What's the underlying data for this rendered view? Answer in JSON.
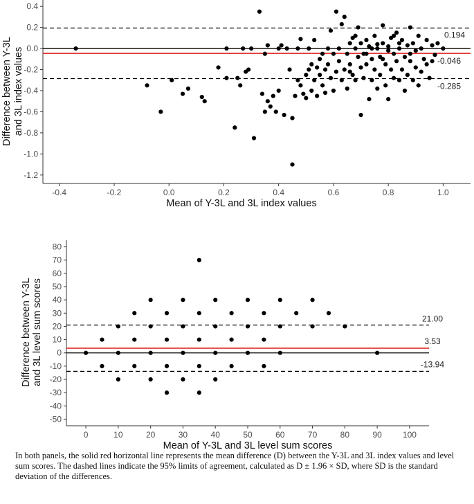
{
  "chart_data": [
    {
      "type": "scatter",
      "title": "",
      "xlabel": "Mean of Y-3L and 3L index values",
      "ylabel_lines": [
        "Difference between Y-3L",
        "and 3L index values"
      ],
      "xlim": [
        -0.46,
        1.1
      ],
      "ylim": [
        -1.28,
        0.46
      ],
      "xticks": [
        -0.4,
        -0.2,
        0.0,
        0.2,
        0.4,
        0.6,
        0.8,
        1.0
      ],
      "yticks": [
        0.4,
        0.2,
        0.0,
        -0.2,
        -0.4,
        -0.6,
        -0.8,
        -1.0,
        -1.2
      ],
      "xtick_labels": [
        "-0.4",
        "-0.2",
        "0.0",
        "0.2",
        "0.4",
        "0.6",
        "0.8",
        "1.0"
      ],
      "ytick_labels": [
        "0.4",
        "0.2",
        "0.0",
        "-0.2",
        "-0.4",
        "-0.6",
        "-0.8",
        "-1.0",
        "-1.2"
      ],
      "zero_line": 0,
      "mean_diff": -0.046,
      "upper_loa": 0.194,
      "lower_loa": -0.285,
      "mean_label": "-0.046",
      "upper_label": "0.194",
      "lower_label": "-0.285",
      "colors": {
        "mean": "#e0201b",
        "limits": "#000000",
        "zero": "#000000",
        "points": "#000000"
      },
      "points": [
        [
          -0.34,
          0.0
        ],
        [
          -0.08,
          -0.35
        ],
        [
          -0.03,
          -0.6
        ],
        [
          0.01,
          -0.3
        ],
        [
          0.05,
          -0.43
        ],
        [
          0.07,
          -0.38
        ],
        [
          0.12,
          -0.46
        ],
        [
          0.13,
          -0.5
        ],
        [
          0.18,
          -0.18
        ],
        [
          0.21,
          -0.28
        ],
        [
          0.21,
          0.0
        ],
        [
          0.24,
          -0.75
        ],
        [
          0.25,
          -0.28
        ],
        [
          0.26,
          -0.35
        ],
        [
          0.27,
          0.0
        ],
        [
          0.28,
          -0.22
        ],
        [
          0.29,
          -0.2
        ],
        [
          0.3,
          0.0
        ],
        [
          0.31,
          -0.85
        ],
        [
          0.33,
          0.35
        ],
        [
          0.34,
          -0.43
        ],
        [
          0.35,
          -0.6
        ],
        [
          0.35,
          -0.05
        ],
        [
          0.36,
          0.03
        ],
        [
          0.36,
          -0.5
        ],
        [
          0.37,
          -0.55
        ],
        [
          0.38,
          -0.45
        ],
        [
          0.39,
          -0.6
        ],
        [
          0.4,
          0.0
        ],
        [
          0.4,
          -0.4
        ],
        [
          0.41,
          0.03
        ],
        [
          0.42,
          -0.63
        ],
        [
          0.43,
          0.0
        ],
        [
          0.44,
          -0.2
        ],
        [
          0.45,
          -0.66
        ],
        [
          0.45,
          -1.1
        ],
        [
          0.46,
          -0.45
        ],
        [
          0.47,
          0.0
        ],
        [
          0.47,
          -0.3
        ],
        [
          0.48,
          0.09
        ],
        [
          0.48,
          -0.35
        ],
        [
          0.49,
          -0.43
        ],
        [
          0.5,
          -0.25
        ],
        [
          0.5,
          -0.47
        ],
        [
          0.51,
          -0.2
        ],
        [
          0.51,
          0.0
        ],
        [
          0.52,
          -0.15
        ],
        [
          0.52,
          -0.4
        ],
        [
          0.53,
          0.08
        ],
        [
          0.53,
          -0.3
        ],
        [
          0.54,
          -0.18
        ],
        [
          0.54,
          -0.45
        ],
        [
          0.55,
          -0.1
        ],
        [
          0.55,
          -0.25
        ],
        [
          0.56,
          -0.05
        ],
        [
          0.56,
          -0.35
        ],
        [
          0.57,
          -0.2
        ],
        [
          0.57,
          -0.42
        ],
        [
          0.58,
          0.0
        ],
        [
          0.58,
          -0.15
        ],
        [
          0.59,
          -0.28
        ],
        [
          0.59,
          0.17
        ],
        [
          0.6,
          -0.05
        ],
        [
          0.6,
          -0.4
        ],
        [
          0.61,
          0.35
        ],
        [
          0.61,
          -0.22
        ],
        [
          0.62,
          0.0
        ],
        [
          0.62,
          -0.12
        ],
        [
          0.63,
          0.23
        ],
        [
          0.63,
          -0.3
        ],
        [
          0.64,
          -0.2
        ],
        [
          0.64,
          0.3
        ],
        [
          0.65,
          -0.05
        ],
        [
          0.65,
          -0.38
        ],
        [
          0.66,
          0.05
        ],
        [
          0.66,
          -0.15
        ],
        [
          0.67,
          0.1
        ],
        [
          0.67,
          -0.25
        ],
        [
          0.68,
          0.0
        ],
        [
          0.68,
          -0.3
        ],
        [
          0.69,
          0.2
        ],
        [
          0.69,
          -0.08
        ],
        [
          0.7,
          0.05
        ],
        [
          0.7,
          -0.18
        ],
        [
          0.7,
          -0.63
        ],
        [
          0.71,
          -0.05
        ],
        [
          0.71,
          -0.28
        ],
        [
          0.72,
          0.08
        ],
        [
          0.72,
          -0.15
        ],
        [
          0.73,
          -0.48
        ],
        [
          0.73,
          0.02
        ],
        [
          0.74,
          -0.1
        ],
        [
          0.74,
          -0.3
        ],
        [
          0.75,
          0.12
        ],
        [
          0.75,
          -0.2
        ],
        [
          0.76,
          0.0
        ],
        [
          0.76,
          -0.38
        ],
        [
          0.77,
          -0.08
        ],
        [
          0.77,
          -0.25
        ],
        [
          0.78,
          0.05
        ],
        [
          0.78,
          0.22
        ],
        [
          0.79,
          -0.15
        ],
        [
          0.79,
          -0.35
        ],
        [
          0.8,
          0.02
        ],
        [
          0.8,
          -0.48
        ],
        [
          0.81,
          0.1
        ],
        [
          0.81,
          -0.2
        ],
        [
          0.82,
          -0.05
        ],
        [
          0.82,
          -0.28
        ],
        [
          0.83,
          0.15
        ],
        [
          0.83,
          -0.12
        ],
        [
          0.84,
          0.0
        ],
        [
          0.84,
          -0.3
        ],
        [
          0.85,
          0.08
        ],
        [
          0.85,
          -0.2
        ],
        [
          0.86,
          -0.08
        ],
        [
          0.86,
          -0.4
        ],
        [
          0.87,
          0.03
        ],
        [
          0.87,
          -0.25
        ],
        [
          0.88,
          -0.12
        ],
        [
          0.88,
          0.2
        ],
        [
          0.89,
          0.05
        ],
        [
          0.89,
          -0.3
        ],
        [
          0.9,
          -0.02
        ],
        [
          0.9,
          -0.18
        ],
        [
          0.91,
          0.12
        ],
        [
          0.91,
          -0.35
        ],
        [
          0.92,
          0.0
        ],
        [
          0.92,
          -0.22
        ],
        [
          0.93,
          -0.1
        ],
        [
          0.94,
          0.08
        ],
        [
          0.94,
          -0.15
        ],
        [
          0.95,
          -0.28
        ],
        [
          0.96,
          0.03
        ],
        [
          0.96,
          -0.12
        ],
        [
          0.97,
          -0.06
        ],
        [
          0.98,
          0.05
        ],
        [
          1.0,
          0.0
        ],
        [
          0.74,
          0.0
        ],
        [
          0.76,
          0.04
        ],
        [
          0.8,
          -0.02
        ],
        [
          0.84,
          0.05
        ],
        [
          0.72,
          -0.05
        ],
        [
          0.68,
          0.12
        ],
        [
          0.66,
          -0.22
        ],
        [
          0.78,
          -0.1
        ],
        [
          0.88,
          -0.05
        ],
        [
          0.82,
          0.12
        ]
      ]
    },
    {
      "type": "scatter",
      "title": "",
      "xlabel": "Mean of Y-3L and 3L level sum scores",
      "ylabel_lines": [
        "Difference between Y-3L",
        "and 3L level sum scores"
      ],
      "xlim": [
        -6,
        106
      ],
      "ylim": [
        -55,
        85
      ],
      "xticks": [
        0,
        10,
        20,
        30,
        40,
        50,
        60,
        70,
        80,
        90,
        100
      ],
      "yticks": [
        80,
        70,
        60,
        50,
        40,
        30,
        20,
        10,
        0,
        -10,
        -20,
        -30,
        -40,
        -50
      ],
      "xtick_labels": [
        "0",
        "10",
        "20",
        "30",
        "40",
        "50",
        "60",
        "70",
        "80",
        "90",
        "100"
      ],
      "ytick_labels": [
        "80",
        "70",
        "60",
        "50",
        "40",
        "30",
        "20",
        "10",
        "0",
        "-10",
        "-20",
        "-30",
        "-40",
        "-50"
      ],
      "zero_line": 0,
      "mean_diff": 3.53,
      "upper_loa": 21.0,
      "lower_loa": -13.94,
      "mean_label": "3.53",
      "upper_label": "21.00",
      "lower_label": "-13.94",
      "colors": {
        "mean": "#e0201b",
        "limits": "#000000",
        "zero": "#000000",
        "points": "#000000"
      },
      "points": [
        [
          0,
          0
        ],
        [
          5,
          10
        ],
        [
          5,
          -10
        ],
        [
          10,
          20
        ],
        [
          10,
          0
        ],
        [
          10,
          -20
        ],
        [
          15,
          30
        ],
        [
          15,
          10
        ],
        [
          15,
          -10
        ],
        [
          20,
          40
        ],
        [
          20,
          20
        ],
        [
          20,
          0
        ],
        [
          20,
          -20
        ],
        [
          25,
          30
        ],
        [
          25,
          10
        ],
        [
          25,
          -10
        ],
        [
          25,
          -30
        ],
        [
          30,
          40
        ],
        [
          30,
          20
        ],
        [
          30,
          0
        ],
        [
          30,
          -20
        ],
        [
          35,
          70
        ],
        [
          35,
          30
        ],
        [
          35,
          10
        ],
        [
          35,
          -10
        ],
        [
          35,
          -30
        ],
        [
          40,
          40
        ],
        [
          40,
          20
        ],
        [
          40,
          0
        ],
        [
          40,
          -20
        ],
        [
          45,
          30
        ],
        [
          45,
          10
        ],
        [
          45,
          -10
        ],
        [
          50,
          40
        ],
        [
          50,
          20
        ],
        [
          50,
          0
        ],
        [
          55,
          30
        ],
        [
          55,
          10
        ],
        [
          55,
          -10
        ],
        [
          60,
          40
        ],
        [
          60,
          20
        ],
        [
          60,
          0
        ],
        [
          65,
          30
        ],
        [
          70,
          40
        ],
        [
          70,
          20
        ],
        [
          75,
          30
        ],
        [
          80,
          20
        ],
        [
          90,
          0
        ]
      ]
    }
  ],
  "caption": "In both panels, the solid red horizontal line represents the mean difference (D) between the Y-3L and 3L index values and level sum scores. The dashed lines indicate the 95% limits of agreement, calculated as D ± 1.96 × SD, where SD is the standard deviation of the differences."
}
